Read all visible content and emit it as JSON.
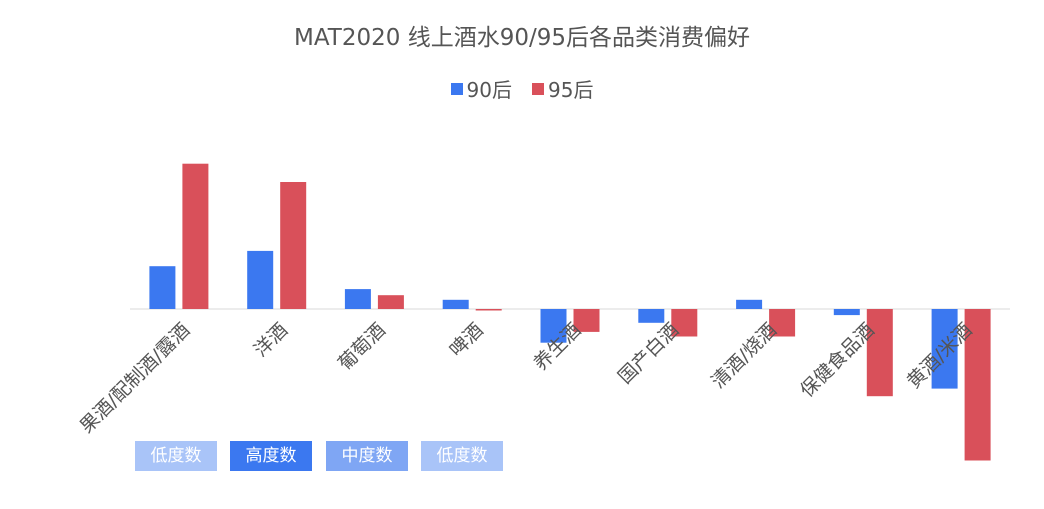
{
  "chart_data": {
    "type": "bar",
    "title": "MAT2020 线上酒水90/95后各品类消费偏好",
    "xlabel": "",
    "ylabel": "",
    "ylim": [
      -1.0,
      1.0
    ],
    "grid": false,
    "legend_position": "top-center",
    "categories": [
      "果酒/配制酒/露酒",
      "洋酒",
      "葡萄酒",
      "啤酒",
      "养生酒",
      "国产白酒",
      "清酒/烧酒",
      "保健食品酒",
      "黄酒/米酒"
    ],
    "series": [
      {
        "name": "90后",
        "color": "#3b78f0",
        "values": [
          0.28,
          0.38,
          0.13,
          0.06,
          -0.22,
          -0.09,
          0.06,
          -0.04,
          -0.52
        ]
      },
      {
        "name": "95后",
        "color": "#d9505a",
        "values": [
          0.95,
          0.83,
          0.09,
          -0.01,
          -0.15,
          -0.18,
          -0.18,
          -0.57,
          -0.99
        ]
      }
    ],
    "tags": [
      {
        "label": "低度数",
        "color": "#a9c4f8"
      },
      {
        "label": "高度数",
        "color": "#3b78f0"
      },
      {
        "label": "中度数",
        "color": "#7fa6f4"
      },
      {
        "label": "低度数",
        "color": "#a9c4f8"
      }
    ]
  }
}
